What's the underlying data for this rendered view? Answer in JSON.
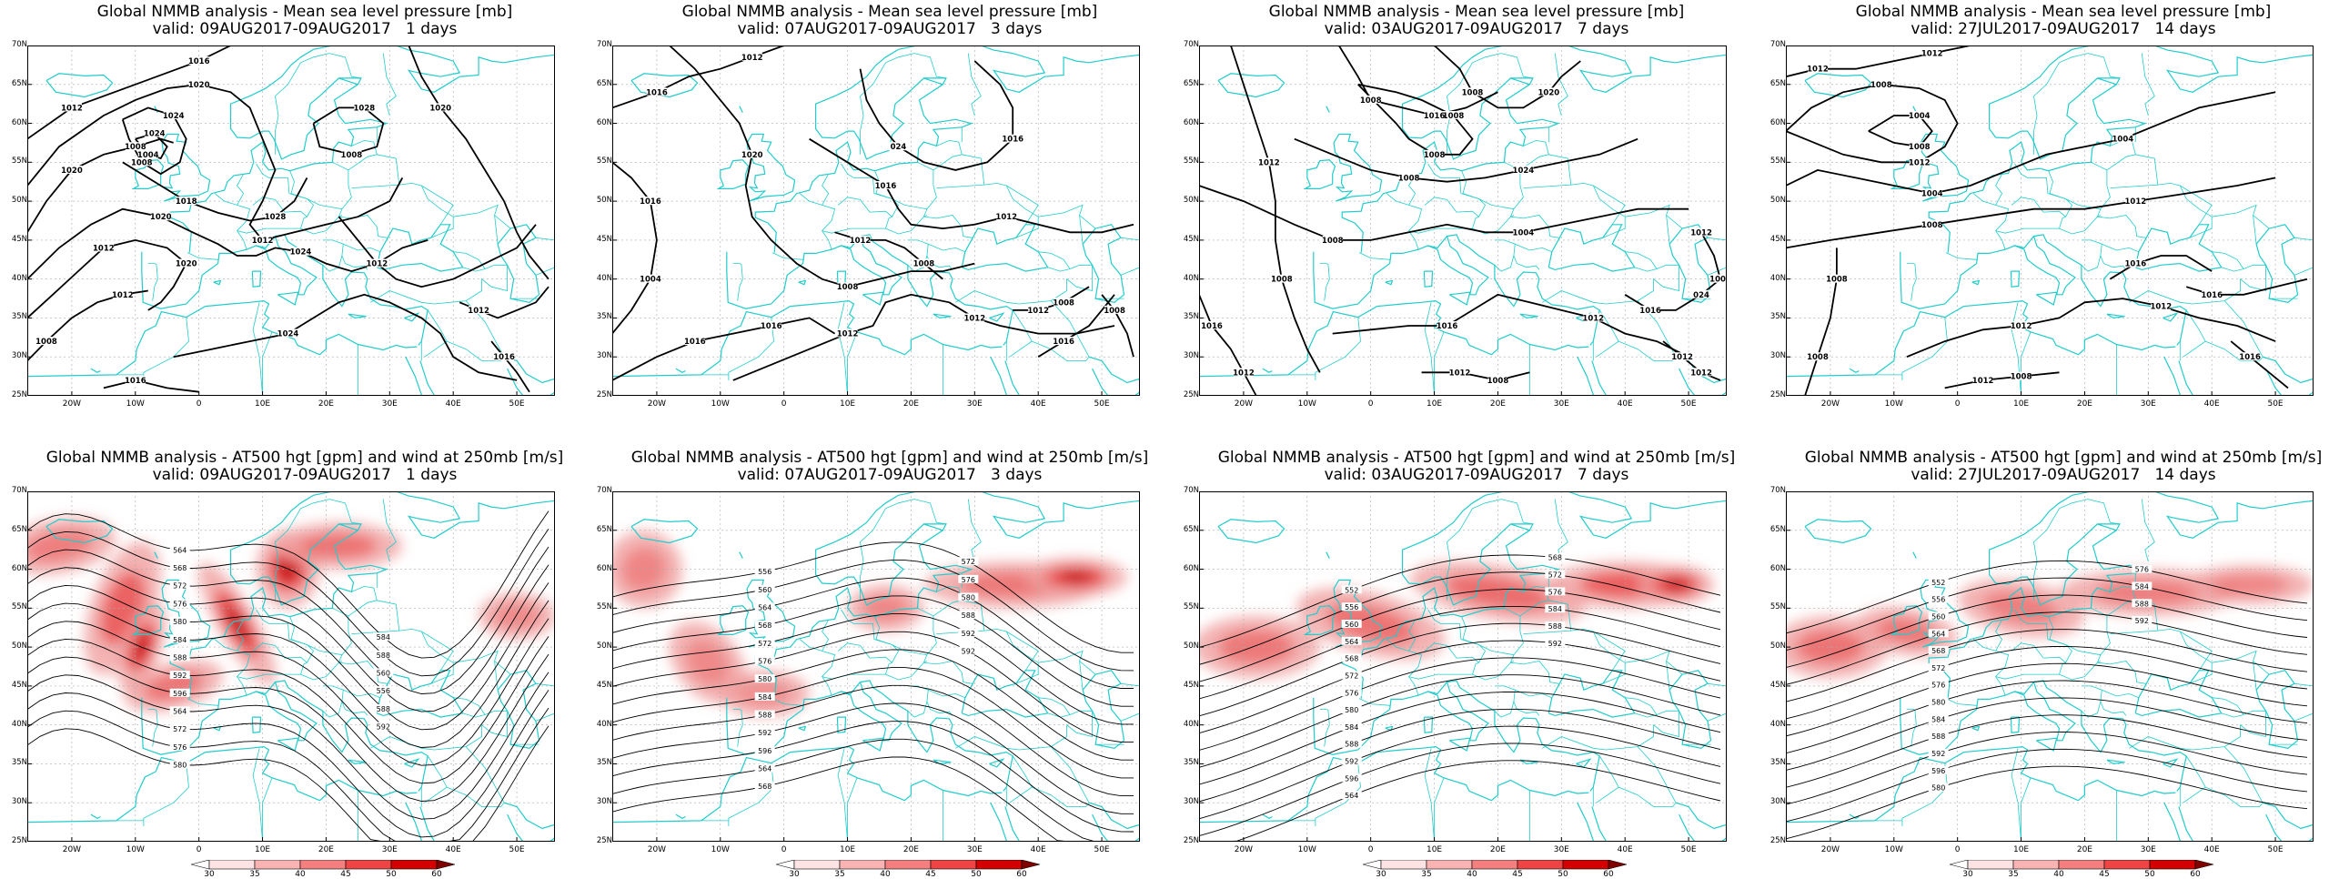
{
  "panels": [
    {
      "title": "Global NMMB analysis - Mean sea level pressure [mb]",
      "subtitle": "valid: 09AUG2017-09AUG2017   1 days",
      "kind": "mslp",
      "contour_labels": [
        "1012",
        "1020",
        "1020",
        "1024",
        "1024",
        "1018",
        "1020",
        "1012",
        "1008",
        "1028",
        "1024",
        "1016",
        "1020",
        "1012",
        "1012",
        "1016",
        "1016",
        "1012",
        "1008",
        "1008",
        "1004",
        "1028",
        "1024",
        "1020",
        "1012",
        "1008"
      ]
    },
    {
      "title": "Global NMMB analysis - Mean sea level pressure [mb]",
      "subtitle": "valid: 07AUG2017-09AUG2017   3 days",
      "kind": "mslp",
      "contour_labels": [
        "1016",
        "1016",
        "1020",
        "1016",
        "1016",
        "1016",
        "1012",
        "1012",
        "1012",
        "1016",
        "1008",
        "1012",
        "1004",
        "1008",
        "1016",
        "024",
        "1012",
        "1008",
        "1012",
        "1008"
      ]
    },
    {
      "title": "Global NMMB analysis - Mean sea level pressure [mb]",
      "subtitle": "valid: 03AUG2017-09AUG2017   7 days",
      "kind": "mslp",
      "contour_labels": [
        "1008",
        "1008",
        "1008",
        "1008",
        "1008",
        "1012",
        "1016",
        "1016",
        "1012",
        "1016",
        "1012",
        "1012",
        "1016",
        "1020",
        "1008",
        "1024",
        "1004",
        "1008",
        "1012",
        "1012",
        "1008",
        "024",
        "1012",
        "1008"
      ]
    },
    {
      "title": "Global NMMB analysis - Mean sea level pressure [mb]",
      "subtitle": "valid: 27JUL2017-09AUG2017   14 days",
      "kind": "mslp",
      "contour_labels": [
        "1012",
        "1008",
        "1004",
        "1004",
        "1008",
        "1008",
        "1012",
        "1012",
        "1016",
        "1016",
        "1016",
        "1012",
        "1012",
        "1008",
        "1004",
        "1012",
        "1008",
        "1012",
        "1008"
      ]
    },
    {
      "title": "Global NMMB analysis - AT500 hgt [gpm] and wind at 250mb [m/s]",
      "subtitle": "valid: 09AUG2017-09AUG2017   1 days",
      "kind": "z500",
      "contour_labels": [
        "564",
        "568",
        "572",
        "576",
        "580",
        "584",
        "588",
        "592",
        "596",
        "564",
        "572",
        "576",
        "580",
        "584",
        "588",
        "560",
        "556",
        "588",
        "592"
      ]
    },
    {
      "title": "Global NMMB analysis - AT500 hgt [gpm] and wind at 250mb [m/s]",
      "subtitle": "valid: 07AUG2017-09AUG2017   3 days",
      "kind": "z500",
      "contour_labels": [
        "556",
        "560",
        "564",
        "568",
        "572",
        "576",
        "580",
        "584",
        "588",
        "592",
        "596",
        "564",
        "568",
        "572",
        "576",
        "580",
        "588",
        "592",
        "592"
      ]
    },
    {
      "title": "Global NMMB analysis - AT500 hgt [gpm] and wind at 250mb [m/s]",
      "subtitle": "valid: 03AUG2017-09AUG2017   7 days",
      "kind": "z500",
      "contour_labels": [
        "552",
        "556",
        "560",
        "564",
        "568",
        "572",
        "576",
        "580",
        "584",
        "588",
        "592",
        "596",
        "564",
        "568",
        "572",
        "576",
        "584",
        "588",
        "592"
      ]
    },
    {
      "title": "Global NMMB analysis - AT500 hgt [gpm] and wind at 250mb [m/s]",
      "subtitle": "valid: 27JUL2017-09AUG2017   14 days",
      "kind": "z500",
      "contour_labels": [
        "552",
        "556",
        "560",
        "564",
        "568",
        "572",
        "576",
        "580",
        "584",
        "588",
        "592",
        "596",
        "580",
        "576",
        "584",
        "588",
        "592"
      ]
    }
  ],
  "axes": {
    "y_ticks": [
      "70N",
      "65N",
      "60N",
      "55N",
      "50N",
      "45N",
      "40N",
      "35N",
      "30N",
      "25N"
    ],
    "x_ticks": [
      "20W",
      "10W",
      "0",
      "10E",
      "20E",
      "30E",
      "40E",
      "50E"
    ],
    "lon_range": [
      -27,
      56
    ],
    "lat_range": [
      25,
      70
    ]
  },
  "colorbar": {
    "labels": [
      "30",
      "35",
      "40",
      "45",
      "50",
      "60"
    ],
    "colors": [
      "#ffffff",
      "#fde3e3",
      "#f9b3b3",
      "#f47f7f",
      "#ee4444",
      "#d40000",
      "#800000"
    ]
  },
  "colors": {
    "coast": "#22cccc",
    "contour": "#000000",
    "grid": "#aaaaaa"
  }
}
